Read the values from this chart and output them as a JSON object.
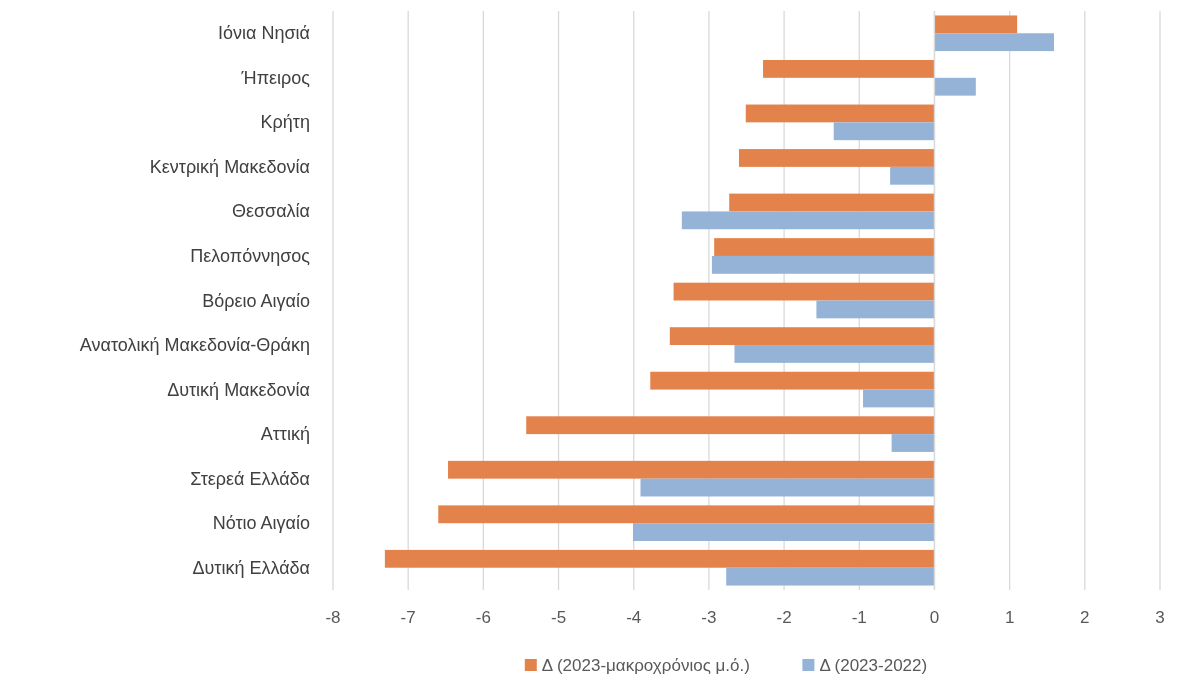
{
  "chart_data": {
    "type": "bar",
    "orientation": "horizontal",
    "categories": [
      "Ιόνια Νησιά",
      "Ήπειρος",
      "Κρήτη",
      "Κεντρική Μακεδονία",
      "Θεσσαλία",
      "Πελοπόννησος",
      "Βόρειο Αιγαίο",
      "Ανατολική Μακεδονία-Θράκη",
      "Δυτική Μακεδονία",
      "Αττική",
      "Στερεά Ελλάδα",
      "Νότιο Αιγαίο",
      "Δυτική Ελλάδα"
    ],
    "series": [
      {
        "name": "Δ (2023-μακροχρόνιος μ.ό.)",
        "color": "#e3834b",
        "values": [
          1.1,
          -2.28,
          -2.51,
          -2.6,
          -2.73,
          -2.93,
          -3.47,
          -3.52,
          -3.78,
          -5.43,
          -6.47,
          -6.6,
          -7.31
        ]
      },
      {
        "name": "Δ (2023-2022)",
        "color": "#95b3d7",
        "values": [
          1.59,
          0.55,
          -1.34,
          -0.59,
          -3.36,
          -2.96,
          -1.57,
          -2.66,
          -0.95,
          -0.57,
          -3.91,
          -4.01,
          -2.77
        ]
      }
    ],
    "xlim": [
      -8,
      3
    ],
    "xticks": [
      -8,
      -7,
      -6,
      -5,
      -4,
      -3,
      -2,
      -1,
      0,
      1,
      2,
      3
    ],
    "grid": "x",
    "legend": "bottom"
  }
}
